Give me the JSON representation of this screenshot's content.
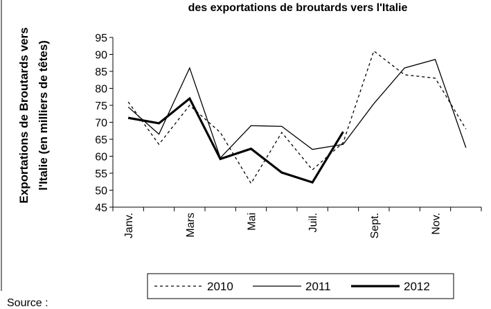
{
  "chart_data": {
    "type": "line",
    "title": "des exportations de broutards vers l'Italie",
    "y_label_lines": [
      "Exportations de Broutards vers",
      "l'Italie (en milliers de têtes)"
    ],
    "source": "Source :",
    "categories": [
      "Janv.",
      null,
      "Mars",
      null,
      "Mai",
      null,
      "Juil.",
      null,
      "Sept.",
      null,
      "Nov.",
      null
    ],
    "series": [
      {
        "name": "2010",
        "color": "#000000",
        "style": "dashed",
        "width": 1.3,
        "values": [
          76,
          63.5,
          75,
          67,
          52,
          67,
          56,
          64,
          91,
          84,
          83,
          68
        ]
      },
      {
        "name": "2011",
        "color": "#000000",
        "style": "solid",
        "width": 1.3,
        "values": [
          74.5,
          66.5,
          86,
          59.5,
          69,
          68.8,
          62,
          63.5,
          75.5,
          86,
          88.5,
          62.5
        ]
      },
      {
        "name": "2012",
        "color": "#000000",
        "style": "solid",
        "width": 3.2,
        "values": [
          71.3,
          69.7,
          77,
          59.2,
          62.2,
          55.2,
          52.3,
          67.2,
          null,
          null,
          null,
          null
        ]
      }
    ],
    "ylim": [
      45,
      95
    ],
    "yticks": [
      45,
      50,
      55,
      60,
      65,
      70,
      75,
      80,
      85,
      90,
      95
    ],
    "grid": false,
    "legend": "bottom"
  }
}
